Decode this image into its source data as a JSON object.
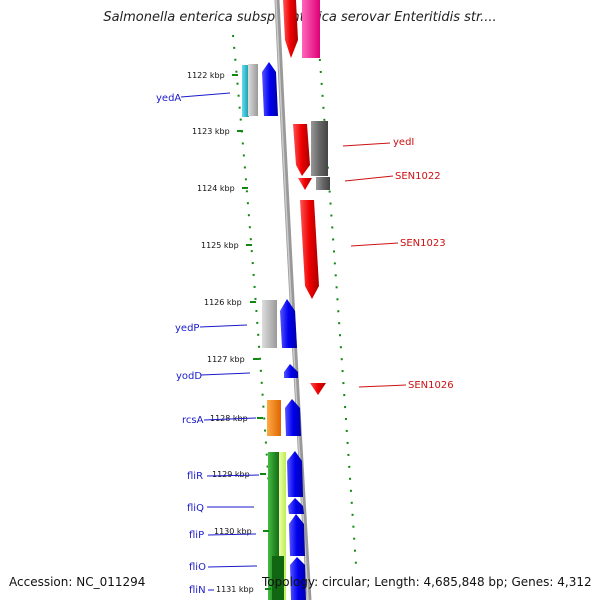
{
  "title": "Salmonella enterica subsp. enterica serovar Enteritidis str....",
  "footer": {
    "accession": "Accession: NC_011294",
    "topology": "Topology: circular; Length: 4,685,848 bp; Genes: 4,312"
  },
  "kbp_labels": [
    "1122 kbp",
    "1123 kbp",
    "1124 kbp",
    "1125 kbp",
    "1126 kbp",
    "1127 kbp",
    "1128 kbp",
    "1129 kbp",
    "1130 kbp",
    "1131 kbp"
  ],
  "left_genes": [
    "yedA",
    "yedP",
    "yodD",
    "rcsA",
    "fliR",
    "fliQ",
    "fliP",
    "fliO",
    "fliN"
  ],
  "right_genes": [
    "yedI",
    "SEN1022",
    "SEN1023",
    "SEN1026"
  ],
  "colors": {
    "blue_gene": "#1010ee",
    "red_gene": "#ee0000",
    "gray_gene": "#777777",
    "light_gray_gene": "#bbbbbb",
    "cyan_gene": "#22bbcc",
    "orange_gene": "#ff8800",
    "green_gene": "#229922",
    "lime_gene": "#ccff66",
    "magenta_gene": "#ff1199",
    "tick_green": "#118811",
    "backbone": "#888888"
  }
}
